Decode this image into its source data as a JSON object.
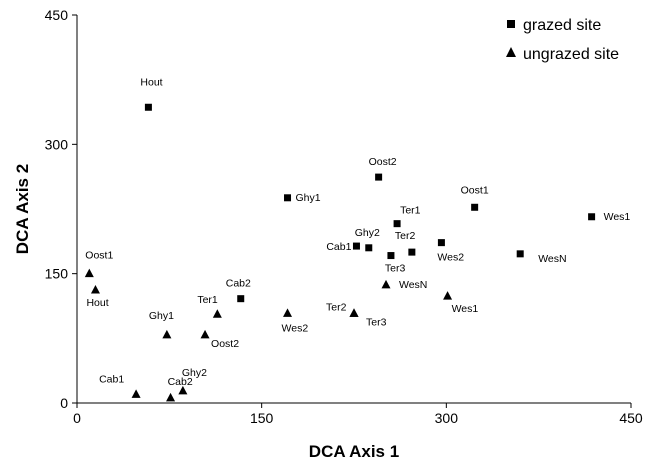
{
  "chart_data": {
    "type": "scatter",
    "xlabel": "DCA Axis 1",
    "ylabel": "DCA Axis 2",
    "xlim": [
      0,
      450
    ],
    "ylim": [
      0,
      450
    ],
    "xticks": [
      "0",
      "150",
      "300",
      "450"
    ],
    "yticks": [
      "0",
      "150",
      "300",
      "450"
    ],
    "grid": false,
    "legend_position": "top-right",
    "series": [
      {
        "name": "grazed site",
        "marker": "square",
        "points": [
          {
            "label": "Hout",
            "x": 58,
            "y": 343
          },
          {
            "label": "Oost2",
            "x": 245,
            "y": 262
          },
          {
            "label": "Ghy1",
            "x": 171,
            "y": 238
          },
          {
            "label": "Oost1",
            "x": 323,
            "y": 227
          },
          {
            "label": "Wes1",
            "x": 418,
            "y": 216
          },
          {
            "label": "Ter1",
            "x": 260,
            "y": 208
          },
          {
            "label": "Ghy2",
            "x": 237,
            "y": 180
          },
          {
            "label": "Cab1",
            "x": 227,
            "y": 182
          },
          {
            "label": "Ter2",
            "x": 272,
            "y": 175
          },
          {
            "label": "Ter3",
            "x": 255,
            "y": 171
          },
          {
            "label": "Wes2",
            "x": 296,
            "y": 186
          },
          {
            "label": "WesN",
            "x": 360,
            "y": 173
          },
          {
            "label": "Cab2",
            "x": 133,
            "y": 121
          }
        ]
      },
      {
        "name": "ungrazed site",
        "marker": "triangle",
        "points": [
          {
            "label": "Oost1",
            "x": 10,
            "y": 150
          },
          {
            "label": "Hout",
            "x": 15,
            "y": 131
          },
          {
            "label": "Ter1",
            "x": 114,
            "y": 103
          },
          {
            "label": "Wes2",
            "x": 171,
            "y": 104
          },
          {
            "label": "Ter2",
            "x": 225,
            "y": 104
          },
          {
            "label": "Ter3",
            "x": 225,
            "y": 104
          },
          {
            "label": "WesN",
            "x": 251,
            "y": 137
          },
          {
            "label": "Wes1",
            "x": 301,
            "y": 124
          },
          {
            "label": "Ghy1",
            "x": 73,
            "y": 79
          },
          {
            "label": "Oost2",
            "x": 104,
            "y": 79
          },
          {
            "label": "Cab1",
            "x": 48,
            "y": 10
          },
          {
            "label": "Cab2",
            "x": 76,
            "y": 6
          },
          {
            "label": "Ghy2",
            "x": 86,
            "y": 14
          }
        ]
      }
    ]
  }
}
